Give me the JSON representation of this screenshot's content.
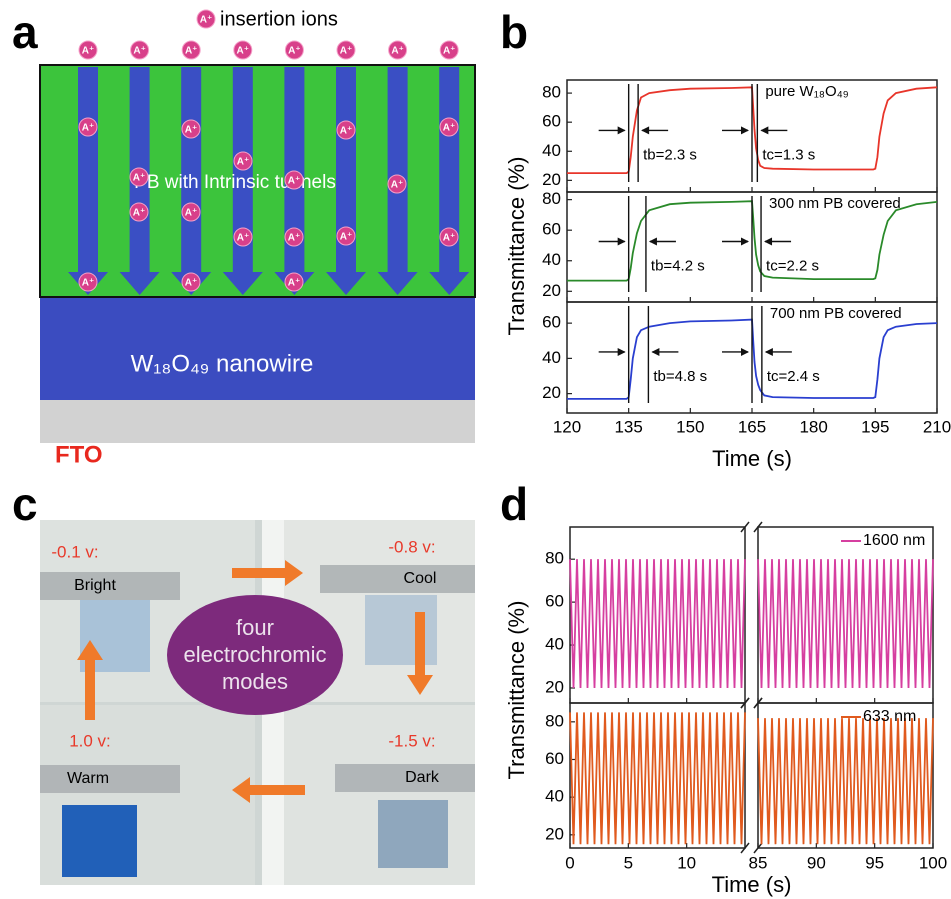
{
  "panel_labels": [
    "a",
    "b",
    "c",
    "d"
  ],
  "diagram": {
    "legend": "insertion ions",
    "ion": "A⁺",
    "film": "PB with Intrinsic tunnels",
    "nanowire": "W₁₈O₄₉ nanowire",
    "substrate": "FTO"
  },
  "photo": {
    "center": [
      "four",
      "electrochromic",
      "modes"
    ],
    "modes": [
      {
        "voltage": "-0.1 v:",
        "name": "Bright"
      },
      {
        "voltage": "-0.8 v:",
        "name": "Cool"
      },
      {
        "voltage": "1.0 v:",
        "name": "Warm"
      },
      {
        "voltage": "-1.5 v:",
        "name": "Dark"
      }
    ]
  },
  "chart_data": [
    {
      "type": "line",
      "ylabel": "Transmittance (%)",
      "xlabel": "Time (s)",
      "xlim": [
        120,
        210
      ],
      "xticks": [
        120,
        135,
        150,
        165,
        180,
        195,
        210
      ],
      "subplots": [
        {
          "ylim": [
            12,
            89
          ],
          "yticks": [
            20,
            40,
            60,
            80
          ],
          "x": [
            120,
            134.5,
            135,
            135.5,
            136,
            137,
            138,
            140,
            145,
            150,
            160,
            165,
            165.3,
            165.6,
            166,
            166.5,
            167,
            168,
            170,
            180,
            194.5,
            195,
            195.5,
            196,
            197,
            198,
            200,
            205,
            210
          ],
          "series": [
            {
              "name": "pure W₁₈O₄₉",
              "color": "#e8352a",
              "values": [
                25,
                25,
                26,
                36,
                50,
                68,
                77,
                80,
                82,
                83,
                83.5,
                84,
                70,
                55,
                42,
                34,
                30,
                28.5,
                28,
                27.5,
                27.5,
                28,
                36,
                50,
                66,
                75,
                80,
                83,
                84
              ]
            }
          ],
          "markers": [
            135,
            137.3,
            165,
            166.3
          ],
          "annotations": [
            "tb=2.3 s",
            "tc=1.3 s"
          ]
        },
        {
          "ylim": [
            13,
            85
          ],
          "yticks": [
            20,
            40,
            60,
            80
          ],
          "x": [
            120,
            134.5,
            135,
            135.5,
            136,
            137,
            138,
            140,
            145,
            150,
            160,
            165,
            165.3,
            165.6,
            166,
            166.5,
            167,
            168,
            170,
            180,
            194.5,
            195,
            195.5,
            196,
            197,
            198,
            200,
            205,
            210
          ],
          "series": [
            {
              "name": "300 nm PB covered",
              "color": "#2a8a2a",
              "values": [
                27,
                27,
                28,
                35,
                45,
                58,
                66,
                73,
                77,
                78,
                78.5,
                79,
                68,
                55,
                44,
                37,
                33,
                30,
                29,
                28,
                28,
                28.5,
                34,
                44,
                57,
                66,
                73,
                77,
                78.5
              ]
            }
          ],
          "markers": [
            135,
            139.2,
            165,
            167.2
          ],
          "annotations": [
            "tb=4.2 s",
            "tc=2.2 s"
          ]
        },
        {
          "ylim": [
            9,
            72
          ],
          "yticks": [
            20,
            40,
            60
          ],
          "x": [
            120,
            134.5,
            135,
            135.5,
            136,
            137,
            138,
            140,
            145,
            150,
            160,
            165,
            165.3,
            165.6,
            166,
            166.5,
            167,
            168,
            170,
            180,
            194.5,
            195,
            195.5,
            196,
            197,
            198,
            200,
            205,
            210
          ],
          "series": [
            {
              "name": "700 nm PB covered",
              "color": "#2a3fd0",
              "values": [
                17,
                17,
                18,
                28,
                40,
                52,
                56,
                58,
                60,
                61,
                61.5,
                62,
                50,
                38,
                30,
                25,
                22,
                19,
                18,
                17.5,
                17.5,
                18,
                28,
                40,
                52,
                56,
                58,
                59.5,
                60
              ]
            }
          ],
          "markers": [
            135,
            139.8,
            165,
            167.4
          ],
          "annotations": [
            "tb=4.8 s",
            "tc=2.4 s"
          ]
        }
      ]
    },
    {
      "type": "line",
      "ylabel": "Transmittance (%)",
      "xlabel": "Time (s)",
      "xlim": [
        0,
        100
      ],
      "xbreak": [
        15,
        85
      ],
      "xticks": [
        0,
        5,
        10,
        85,
        90,
        95,
        100
      ],
      "subplots": [
        {
          "ylim": [
            13,
            95
          ],
          "yticks": [
            20,
            40,
            60,
            80
          ],
          "x": [
            0,
            0.3,
            0.6,
            0.9,
            1.2,
            1.5,
            1.8,
            2.1,
            2.4,
            2.7,
            3,
            3.3,
            3.6,
            3.9,
            4.2,
            4.5,
            4.8,
            5.1,
            5.4,
            5.7,
            6,
            6.3,
            6.6,
            6.9,
            7.2,
            7.5,
            7.8,
            8.1,
            8.4,
            8.7,
            9,
            9.3,
            9.6,
            9.9,
            10.2,
            10.5,
            10.8,
            11.1,
            11.4,
            11.7,
            12,
            12.3,
            12.6,
            12.9,
            13.2,
            13.5,
            13.8,
            14.1,
            14.4,
            14.7,
            15,
            85,
            85.3,
            85.6,
            85.9,
            86.2,
            86.5,
            86.8,
            87.1,
            87.4,
            87.7,
            88,
            88.3,
            88.6,
            88.9,
            89.2,
            89.5,
            89.8,
            90.1,
            90.4,
            90.7,
            91,
            91.3,
            91.6,
            91.9,
            92.2,
            92.5,
            92.8,
            93.1,
            93.4,
            93.7,
            94,
            94.3,
            94.6,
            94.9,
            95.2,
            95.5,
            95.8,
            96.1,
            96.4,
            96.7,
            97,
            97.3,
            97.6,
            97.9,
            98.2,
            98.5,
            98.8,
            99.1,
            99.4,
            99.7,
            100
          ],
          "series": [
            {
              "name": "1600 nm",
              "color": "#d63fa0",
              "values": [
                80,
                20,
                80,
                20,
                80,
                20,
                80,
                20,
                80,
                20,
                80,
                20,
                80,
                20,
                80,
                20,
                80,
                20,
                80,
                20,
                80,
                20,
                80,
                20,
                80,
                20,
                80,
                20,
                80,
                20,
                80,
                20,
                80,
                20,
                80,
                20,
                80,
                20,
                80,
                20,
                80,
                20,
                80,
                20,
                80,
                20,
                80,
                20,
                80,
                20,
                80,
                80,
                20,
                80,
                20,
                80,
                20,
                80,
                20,
                80,
                20,
                80,
                20,
                80,
                20,
                80,
                20,
                80,
                20,
                80,
                20,
                80,
                20,
                80,
                20,
                80,
                20,
                80,
                20,
                80,
                20,
                80,
                20,
                80,
                20,
                80,
                20,
                80,
                20,
                80,
                20,
                80,
                20,
                80,
                20,
                80,
                20,
                80,
                20,
                80,
                20,
                80
              ]
            }
          ]
        },
        {
          "ylim": [
            13,
            90
          ],
          "yticks": [
            20,
            40,
            60,
            80
          ],
          "x": [
            0,
            0.3,
            0.6,
            0.9,
            1.2,
            1.5,
            1.8,
            2.1,
            2.4,
            2.7,
            3,
            3.3,
            3.6,
            3.9,
            4.2,
            4.5,
            4.8,
            5.1,
            5.4,
            5.7,
            6,
            6.3,
            6.6,
            6.9,
            7.2,
            7.5,
            7.8,
            8.1,
            8.4,
            8.7,
            9,
            9.3,
            9.6,
            9.9,
            10.2,
            10.5,
            10.8,
            11.1,
            11.4,
            11.7,
            12,
            12.3,
            12.6,
            12.9,
            13.2,
            13.5,
            13.8,
            14.1,
            14.4,
            14.7,
            15,
            85,
            85.3,
            85.6,
            85.9,
            86.2,
            86.5,
            86.8,
            87.1,
            87.4,
            87.7,
            88,
            88.3,
            88.6,
            88.9,
            89.2,
            89.5,
            89.8,
            90.1,
            90.4,
            90.7,
            91,
            91.3,
            91.6,
            91.9,
            92.2,
            92.5,
            92.8,
            93.1,
            93.4,
            93.7,
            94,
            94.3,
            94.6,
            94.9,
            95.2,
            95.5,
            95.8,
            96.1,
            96.4,
            96.7,
            97,
            97.3,
            97.6,
            97.9,
            98.2,
            98.5,
            98.8,
            99.1,
            99.4,
            99.7,
            100
          ],
          "series": [
            {
              "name": "633 nm",
              "color": "#e05a1e",
              "values": [
                85,
                15,
                85,
                15,
                85,
                15,
                85,
                15,
                85,
                15,
                85,
                15,
                85,
                15,
                85,
                15,
                85,
                15,
                85,
                15,
                85,
                15,
                85,
                15,
                85,
                15,
                85,
                15,
                85,
                15,
                85,
                15,
                85,
                15,
                85,
                15,
                85,
                15,
                85,
                15,
                85,
                15,
                85,
                15,
                85,
                15,
                85,
                15,
                85,
                15,
                85,
                82,
                15,
                82,
                15,
                82,
                15,
                82,
                15,
                82,
                15,
                82,
                15,
                82,
                15,
                82,
                15,
                82,
                15,
                82,
                15,
                82,
                15,
                82,
                15,
                82,
                15,
                82,
                15,
                82,
                15,
                82,
                15,
                82,
                15,
                82,
                15,
                82,
                15,
                82,
                15,
                82,
                15,
                82,
                15,
                82,
                15,
                82,
                15,
                82,
                15,
                82
              ]
            }
          ]
        }
      ]
    }
  ]
}
